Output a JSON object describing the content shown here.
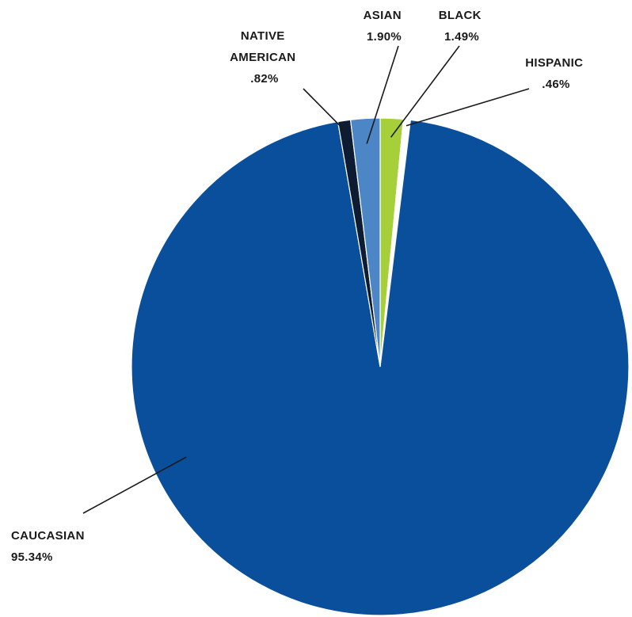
{
  "chart_data": {
    "type": "pie",
    "start_angle_deg": 0,
    "direction": "clockwise",
    "slices": [
      {
        "label": "BLACK",
        "display": "1.49%",
        "value": 1.49,
        "color": "#a6cf3a"
      },
      {
        "label": "HISPANIC",
        "display": ".46%",
        "value": 0.46,
        "color": "#ffffff"
      },
      {
        "label": "CAUCASIAN",
        "display": "95.34%",
        "value": 95.34,
        "color": "#0a4f9c"
      },
      {
        "label": "NATIVE AMERICAN",
        "display": ".82%",
        "value": 0.82,
        "color": "#0d1b33"
      },
      {
        "label": "ASIAN",
        "display": "1.90%",
        "value": 1.9,
        "color": "#4d86c6"
      }
    ],
    "title": "",
    "legend": "none"
  }
}
